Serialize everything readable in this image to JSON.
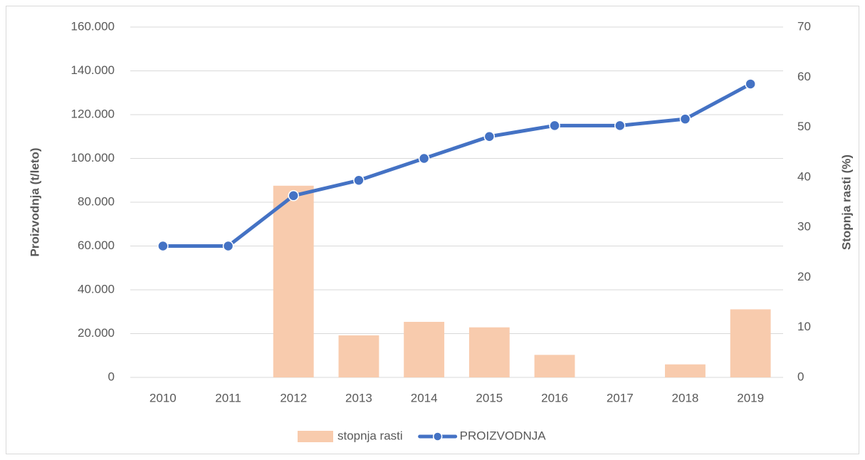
{
  "chart_data": {
    "type": "combo",
    "categories": [
      "2010",
      "2011",
      "2012",
      "2013",
      "2014",
      "2015",
      "2016",
      "2017",
      "2018",
      "2019"
    ],
    "series": [
      {
        "name": "stopnja rasti",
        "type": "bar",
        "axis": "y2",
        "color": "#f8cbad",
        "values": [
          0,
          0,
          38.3,
          8.4,
          11.1,
          10,
          4.5,
          0,
          2.6,
          13.6
        ]
      },
      {
        "name": "PROIZVODNJA",
        "type": "line",
        "axis": "y",
        "color": "#4472c4",
        "values": [
          60000,
          60000,
          83000,
          90000,
          100000,
          110000,
          115000,
          115000,
          118000,
          134000
        ]
      }
    ],
    "ylabel": "Proizvodnja (t/leto)",
    "y2label": "Stopnja rasti (%)",
    "ylim": [
      0,
      160000
    ],
    "yticks": [
      0,
      {
        "value": 20000,
        "label": "20.000"
      },
      {
        "value": 40000,
        "label": "40.000"
      },
      {
        "value": 60000,
        "label": "60.000"
      },
      {
        "value": 80000,
        "label": "80.000"
      },
      {
        "value": 100000,
        "label": "100.000"
      },
      {
        "value": 120000,
        "label": "120.000"
      },
      {
        "value": 140000,
        "label": "140.000"
      },
      {
        "value": 160000,
        "label": "160.000"
      }
    ],
    "y2lim": [
      0,
      70
    ],
    "y2ticks": [
      0,
      10,
      20,
      30,
      40,
      50,
      60,
      70
    ],
    "grid": true,
    "legend": "bottom"
  }
}
